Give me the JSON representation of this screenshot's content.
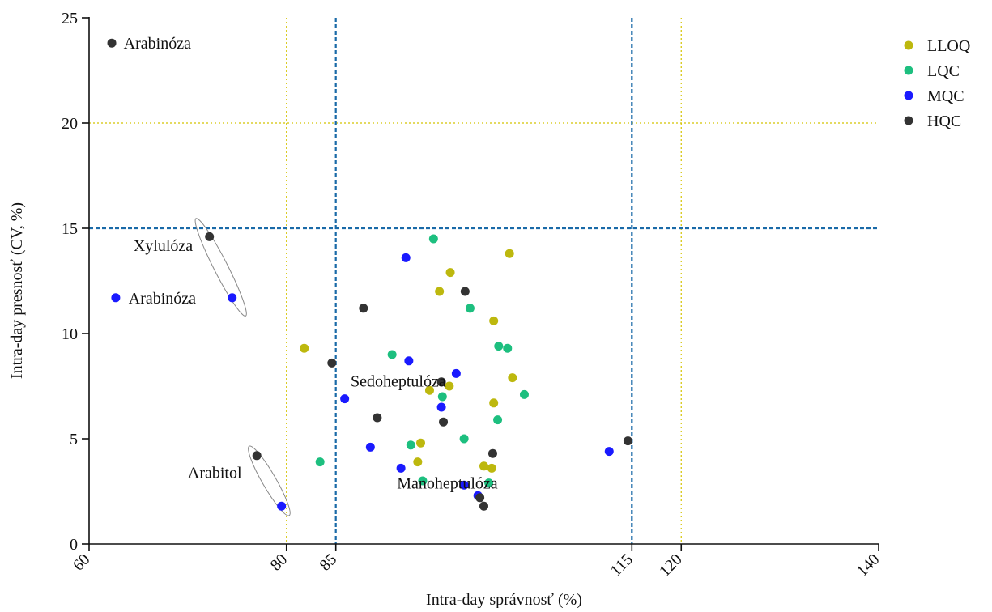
{
  "chart_data": {
    "type": "scatter",
    "xlabel": "Intra-day správnosť (%)",
    "ylabel": "Intra-day presnosť (CV, %)",
    "xlim": [
      60,
      140
    ],
    "ylim": [
      0,
      25
    ],
    "x_ticks": [
      60,
      80,
      85,
      115,
      120,
      140
    ],
    "y_ticks": [
      0,
      5,
      10,
      15,
      20,
      25
    ],
    "reference_lines": {
      "vertical_blue": [
        85,
        115
      ],
      "vertical_yellow": [
        80,
        120
      ],
      "horizontal_blue": [
        15
      ],
      "horizontal_yellow": [
        20
      ]
    },
    "legend_position": "top-right",
    "series": [
      {
        "name": "LLOQ",
        "color": "#bdb80e",
        "points": [
          [
            81.8,
            9.3
          ],
          [
            95.5,
            12.0
          ],
          [
            96.6,
            12.9
          ],
          [
            94.5,
            7.3
          ],
          [
            96.5,
            7.5
          ],
          [
            93.6,
            4.8
          ],
          [
            93.3,
            3.9
          ],
          [
            101.0,
            10.6
          ],
          [
            101.0,
            6.7
          ],
          [
            102.6,
            13.8
          ],
          [
            102.9,
            7.9
          ],
          [
            100.0,
            3.7
          ],
          [
            100.8,
            3.6
          ]
        ]
      },
      {
        "name": "LQC",
        "color": "#1dbf7f",
        "points": [
          [
            83.4,
            3.9
          ],
          [
            90.7,
            9.0
          ],
          [
            94.9,
            14.5
          ],
          [
            92.6,
            4.7
          ],
          [
            93.8,
            3.0
          ],
          [
            95.8,
            7.0
          ],
          [
            98.0,
            5.0
          ],
          [
            98.6,
            11.2
          ],
          [
            101.5,
            9.4
          ],
          [
            102.4,
            9.3
          ],
          [
            101.4,
            5.9
          ],
          [
            104.1,
            7.1
          ],
          [
            100.5,
            2.9
          ]
        ]
      },
      {
        "name": "MQC",
        "color": "#1a1aff",
        "points": [
          [
            62.7,
            11.7
          ],
          [
            74.5,
            11.7
          ],
          [
            79.5,
            1.8
          ],
          [
            85.9,
            6.9
          ],
          [
            88.5,
            4.6
          ],
          [
            92.1,
            13.6
          ],
          [
            92.4,
            8.7
          ],
          [
            91.6,
            3.6
          ],
          [
            95.7,
            6.5
          ],
          [
            97.2,
            8.1
          ],
          [
            98.0,
            2.8
          ],
          [
            99.4,
            2.3
          ],
          [
            112.7,
            4.4
          ]
        ]
      },
      {
        "name": "HQC",
        "color": "#333333",
        "points": [
          [
            62.3,
            23.8
          ],
          [
            72.2,
            14.6
          ],
          [
            77.0,
            4.2
          ],
          [
            84.6,
            8.6
          ],
          [
            87.8,
            11.2
          ],
          [
            89.2,
            6.0
          ],
          [
            95.7,
            7.7
          ],
          [
            95.9,
            5.8
          ],
          [
            98.1,
            12.0
          ],
          [
            99.6,
            2.2
          ],
          [
            100.0,
            1.8
          ],
          [
            100.9,
            4.3
          ],
          [
            114.6,
            4.9
          ]
        ]
      }
    ],
    "annotations": [
      {
        "text": "Arabinóza",
        "x": 63.5,
        "y": 23.8
      },
      {
        "text": "Xylulóza",
        "x": 64.5,
        "y": 14.2
      },
      {
        "text": "Arabinóza",
        "x": 64.0,
        "y": 11.7
      },
      {
        "text": "Arabitol",
        "x": 70.0,
        "y": 3.4
      },
      {
        "text": "Sedoheptulóza",
        "x": 86.5,
        "y": 7.75
      },
      {
        "text": "Manoheptulóza",
        "x": 91.2,
        "y": 2.9
      }
    ],
    "ellipses": [
      {
        "cx": 73.35,
        "cy": 13.15,
        "rx_data": 0.7,
        "ry_data": 2.6,
        "rot": -27
      },
      {
        "cx": 78.25,
        "cy": 3.0,
        "rx_data": 0.7,
        "ry_data": 1.9,
        "rot": -30
      }
    ]
  }
}
